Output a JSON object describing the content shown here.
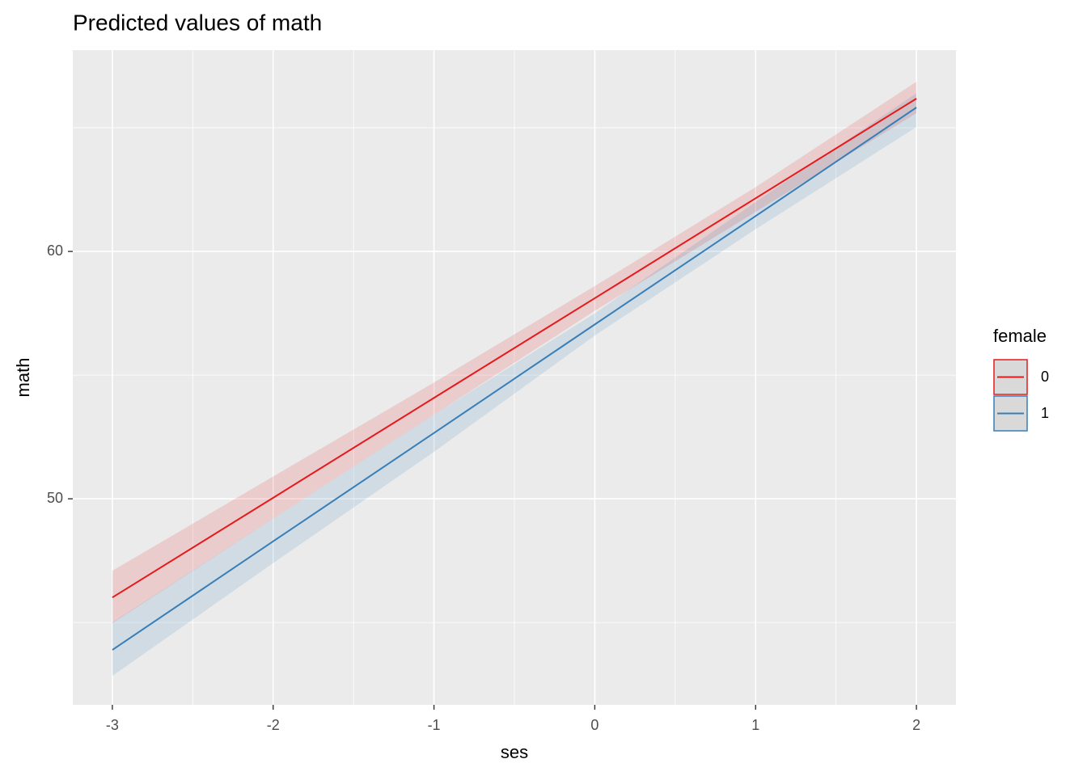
{
  "chart_data": {
    "type": "line",
    "title": "Predicted values of math",
    "x_label": "ses",
    "y_label": "math",
    "legend_title": "female",
    "x": [
      -3,
      -2,
      -1,
      0,
      1,
      2
    ],
    "series": [
      {
        "name": "0",
        "color": "#e41a1c",
        "values": [
          46.01,
          50.04,
          54.08,
          58.11,
          62.15,
          66.18
        ],
        "lower": [
          44.97,
          49.2,
          53.4,
          57.6,
          61.6,
          65.59
        ],
        "upper": [
          47.09,
          50.9,
          54.7,
          58.6,
          62.6,
          66.86
        ]
      },
      {
        "name": "1",
        "color": "#377eb8",
        "values": [
          43.89,
          48.28,
          52.66,
          57.05,
          61.43,
          65.82
        ],
        "lower": [
          42.84,
          47.4,
          51.9,
          56.6,
          60.9,
          65.03
        ],
        "upper": [
          45.0,
          49.2,
          53.4,
          57.5,
          62.0,
          66.4
        ]
      }
    ],
    "xlim": [
      -3.246,
      2.246
    ],
    "ylim": [
      41.67,
      68.14
    ],
    "xticks": [
      -3,
      -2,
      -1,
      0,
      1,
      2
    ],
    "yticks": [
      50,
      60
    ],
    "xminor": [
      -2.5,
      -1.5,
      -0.5,
      0.5,
      1.5
    ],
    "yminor": [
      45,
      55,
      65
    ],
    "grid": true
  }
}
